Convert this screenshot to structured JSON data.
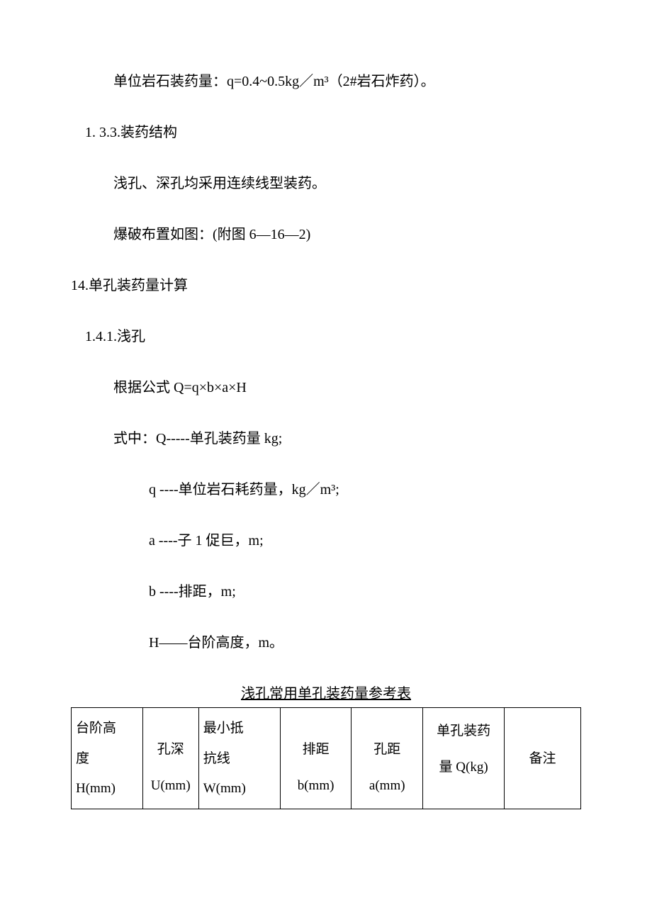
{
  "p1": "单位岩石装药量：q=0.4~0.5kg／m³（2#岩石炸药）。",
  "p2": "1. 3.3.装药结构",
  "p3": "浅孔、深孔均采用连续线型装药。",
  "p4": "爆破布置如图：(附图 6—16—2)",
  "p5": "14.单孔装药量计算",
  "p6": "1.4.1.浅孔",
  "p7": "根据公式 Q=q×b×a×H",
  "p8": "式中：Q-----单孔装药量 kg;",
  "p9": "q ----单位岩石耗药量，kg／m³;",
  "p10": "a ----子 1 促巨，m;",
  "p11": "b ----排距，m;",
  "p12": "H——台阶高度，m。",
  "table": {
    "caption": "浅孔常用单孔装药量参考表",
    "headers": [
      {
        "l1": "台阶高",
        "l2": "度",
        "l3": "H(mm)"
      },
      {
        "l1": "",
        "l2": "孔深",
        "l3": "U(mm)"
      },
      {
        "l1": "最小抵",
        "l2": "抗线",
        "l3": "W(mm)"
      },
      {
        "l1": "",
        "l2": "排距",
        "l3": "b(mm)"
      },
      {
        "l1": "",
        "l2": "孔距",
        "l3": "a(mm)"
      },
      {
        "l1": "单孔装药",
        "l2": "量 Q(kg)",
        "l3": ""
      },
      {
        "l1": "",
        "l2": "备注",
        "l3": ""
      }
    ]
  }
}
